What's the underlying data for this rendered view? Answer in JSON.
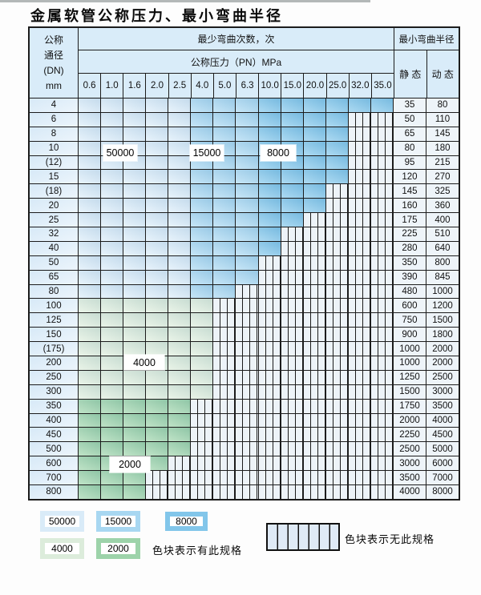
{
  "title": "金属软管公称压力、最小弯曲半径",
  "table": {
    "header": {
      "dn_lines": [
        "公称",
        "通径",
        "(DN)",
        "mm"
      ],
      "bend_times": "最少弯曲次数，次",
      "pressure": "公称压力（PN）MPa",
      "radius": "最小弯曲半径",
      "static": "静 态",
      "dynamic": "动 态"
    },
    "pressures": [
      "0.6",
      "1.0",
      "1.6",
      "2.0",
      "2.5",
      "4.0",
      "5.0",
      "6.3",
      "10.0",
      "15.0",
      "20.0",
      "25.0",
      "32.0",
      "35.0"
    ],
    "blue_band_by_col": [
      "50000",
      "50000",
      "50000",
      "50000",
      "50000",
      "15000",
      "15000",
      "15000",
      "8000",
      "8000",
      "8000",
      "8000",
      "8000",
      "8000"
    ],
    "rows": [
      {
        "dn": "4",
        "band": "blue",
        "colored_cols": 14,
        "static": "35",
        "dynamic": "80"
      },
      {
        "dn": "6",
        "band": "blue",
        "colored_cols": 12,
        "static": "50",
        "dynamic": "110"
      },
      {
        "dn": "8",
        "band": "blue",
        "colored_cols": 12,
        "static": "65",
        "dynamic": "145"
      },
      {
        "dn": "10",
        "band": "blue",
        "colored_cols": 12,
        "static": "80",
        "dynamic": "180"
      },
      {
        "dn": "(12)",
        "band": "blue",
        "colored_cols": 12,
        "static": "95",
        "dynamic": "215"
      },
      {
        "dn": "15",
        "band": "blue",
        "colored_cols": 12,
        "static": "120",
        "dynamic": "270"
      },
      {
        "dn": "(18)",
        "band": "blue",
        "colored_cols": 11,
        "static": "145",
        "dynamic": "325"
      },
      {
        "dn": "20",
        "band": "blue",
        "colored_cols": 11,
        "static": "160",
        "dynamic": "360"
      },
      {
        "dn": "25",
        "band": "blue",
        "colored_cols": 10,
        "static": "175",
        "dynamic": "400"
      },
      {
        "dn": "32",
        "band": "blue",
        "colored_cols": 9,
        "static": "225",
        "dynamic": "510"
      },
      {
        "dn": "40",
        "band": "blue",
        "colored_cols": 9,
        "static": "280",
        "dynamic": "640"
      },
      {
        "dn": "50",
        "band": "blue",
        "colored_cols": 8,
        "static": "350",
        "dynamic": "800"
      },
      {
        "dn": "65",
        "band": "blue",
        "colored_cols": 8,
        "static": "390",
        "dynamic": "845"
      },
      {
        "dn": "80",
        "band": "blue",
        "colored_cols": 7,
        "static": "480",
        "dynamic": "1000"
      },
      {
        "dn": "100",
        "band": "4000",
        "colored_cols": 6,
        "static": "600",
        "dynamic": "1200"
      },
      {
        "dn": "125",
        "band": "4000",
        "colored_cols": 6,
        "static": "750",
        "dynamic": "1500"
      },
      {
        "dn": "150",
        "band": "4000",
        "colored_cols": 6,
        "static": "900",
        "dynamic": "1800"
      },
      {
        "dn": "(175)",
        "band": "4000",
        "colored_cols": 6,
        "static": "1000",
        "dynamic": "2000"
      },
      {
        "dn": "200",
        "band": "4000",
        "colored_cols": 6,
        "static": "1000",
        "dynamic": "2000"
      },
      {
        "dn": "250",
        "band": "4000",
        "colored_cols": 6,
        "static": "1250",
        "dynamic": "2500"
      },
      {
        "dn": "300",
        "band": "4000",
        "colored_cols": 6,
        "static": "1500",
        "dynamic": "3000"
      },
      {
        "dn": "350",
        "band": "2000",
        "colored_cols": 5,
        "static": "1750",
        "dynamic": "3500"
      },
      {
        "dn": "400",
        "band": "2000",
        "colored_cols": 5,
        "static": "2000",
        "dynamic": "4000"
      },
      {
        "dn": "450",
        "band": "2000",
        "colored_cols": 5,
        "static": "2250",
        "dynamic": "4500"
      },
      {
        "dn": "500",
        "band": "2000",
        "colored_cols": 5,
        "static": "2500",
        "dynamic": "5000"
      },
      {
        "dn": "600",
        "band": "2000",
        "colored_cols": 4,
        "static": "3000",
        "dynamic": "6000"
      },
      {
        "dn": "700",
        "band": "2000",
        "colored_cols": 3,
        "static": "3500",
        "dynamic": "7000"
      },
      {
        "dn": "800",
        "band": "2000",
        "colored_cols": 3,
        "static": "4000",
        "dynamic": "8000"
      }
    ],
    "overlay_labels": {
      "l50000": "50000",
      "l15000": "15000",
      "l8000": "8000",
      "l4000": "4000",
      "l2000": "2000"
    }
  },
  "band_colors": {
    "50000": "#d9ebf8",
    "15000": "#a8d7f1",
    "8000": "#82c6ea",
    "4000": "#dcecdb",
    "2000": "#9dd3aa"
  },
  "legend": {
    "chips": [
      {
        "label": "50000"
      },
      {
        "label": "15000"
      },
      {
        "label": "8000"
      },
      {
        "label": "4000"
      },
      {
        "label": "2000"
      }
    ],
    "has_spec": "色块表示有此规格",
    "no_spec": "色块表示无此规格"
  }
}
